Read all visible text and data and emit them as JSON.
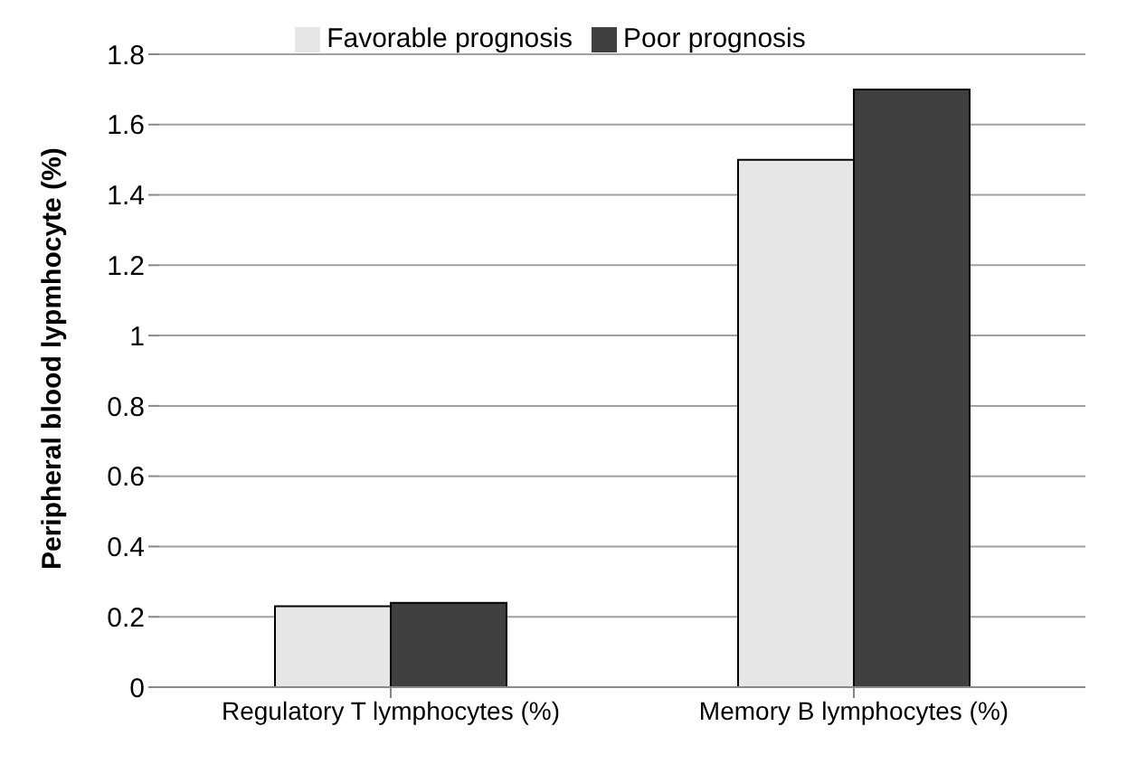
{
  "chart_data": {
    "type": "bar",
    "ylabel": "Peripheral blood lypmhocyte (%)",
    "categories": [
      "Regulatory T lymphocytes  (%)",
      "Memory B lymphocytes  (%)"
    ],
    "series": [
      {
        "name": "Favorable prognosis",
        "color": "#e6e6e6",
        "values": [
          0.23,
          1.5
        ]
      },
      {
        "name": "Poor prognosis",
        "color": "#404040",
        "values": [
          0.24,
          1.7
        ]
      }
    ],
    "ylim": [
      0,
      1.8
    ],
    "yticks": [
      0,
      0.2,
      0.4,
      0.6,
      0.8,
      1,
      1.2,
      1.4,
      1.6,
      1.8
    ],
    "grid": "y",
    "legend": "top"
  }
}
